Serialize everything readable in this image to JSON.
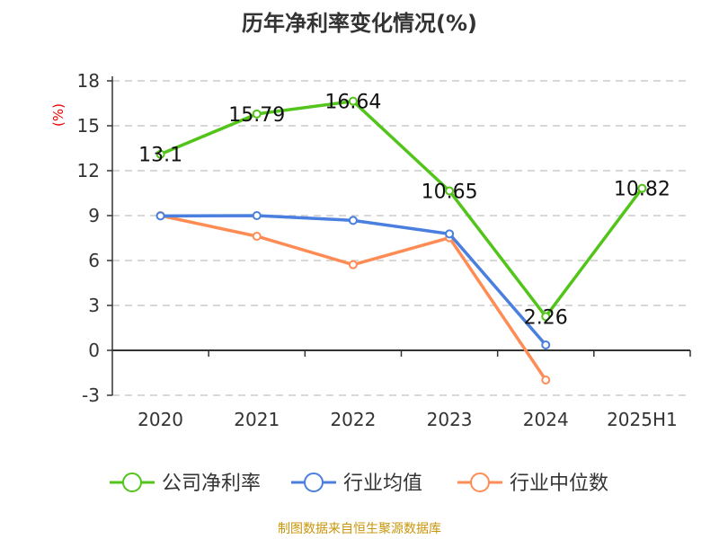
{
  "chart_data": {
    "type": "line",
    "title": "历年净利率变化情况(%)",
    "ylabel": "(%)",
    "categories": [
      "2020",
      "2021",
      "2022",
      "2023",
      "2024",
      "2025H1"
    ],
    "ylim": [
      -3,
      18
    ],
    "yticks": [
      -3,
      0,
      3,
      6,
      9,
      12,
      15,
      18
    ],
    "grid": true,
    "legend_position": "bottom",
    "series": [
      {
        "name": "公司净利率",
        "color": "#52c41a",
        "values": [
          13.1,
          15.79,
          16.64,
          10.65,
          2.26,
          10.82
        ],
        "labels": [
          "13.1",
          "15.79",
          "16.64",
          "10.65",
          "2.26",
          "10.82"
        ]
      },
      {
        "name": "行业均值",
        "color": "#4a7fe0",
        "values": [
          8.98,
          9.0,
          8.68,
          7.78,
          0.36,
          null
        ]
      },
      {
        "name": "行业中位数",
        "color": "#ff8c55",
        "values": [
          9.0,
          7.62,
          5.72,
          7.52,
          -1.98,
          null
        ]
      }
    ]
  },
  "source": "制图数据来自恒生聚源数据库"
}
